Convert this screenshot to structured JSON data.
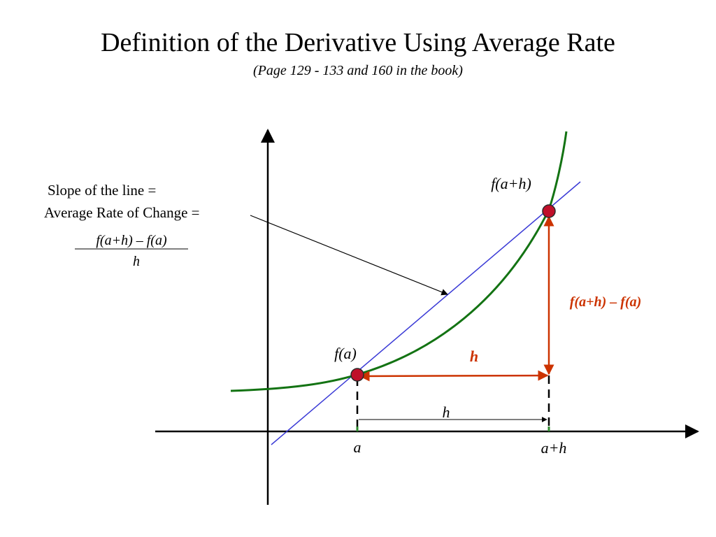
{
  "title": "Definition of the Derivative Using Average Rate",
  "subtitle": "(Page 129 - 133 and 160 in the book)",
  "slope_text": {
    "line1": "Slope of the line =",
    "line2": "Average Rate of Change =",
    "numerator": "f(a+h) – f(a)",
    "denominator": "h"
  },
  "labels": {
    "f_a": "f(a)",
    "f_a_plus_h": "f(a+h)",
    "difference": "f(a+h) – f(a)",
    "h_red": "h",
    "h_black": "h",
    "a": "a",
    "a_plus_h": "a+h"
  },
  "colors": {
    "curve": "#137313",
    "secant": "#3a3ad6",
    "increment": "#cc3300",
    "point_fill": "#c0102a",
    "axis": "#000000",
    "tick": "#2e8b2e"
  }
}
